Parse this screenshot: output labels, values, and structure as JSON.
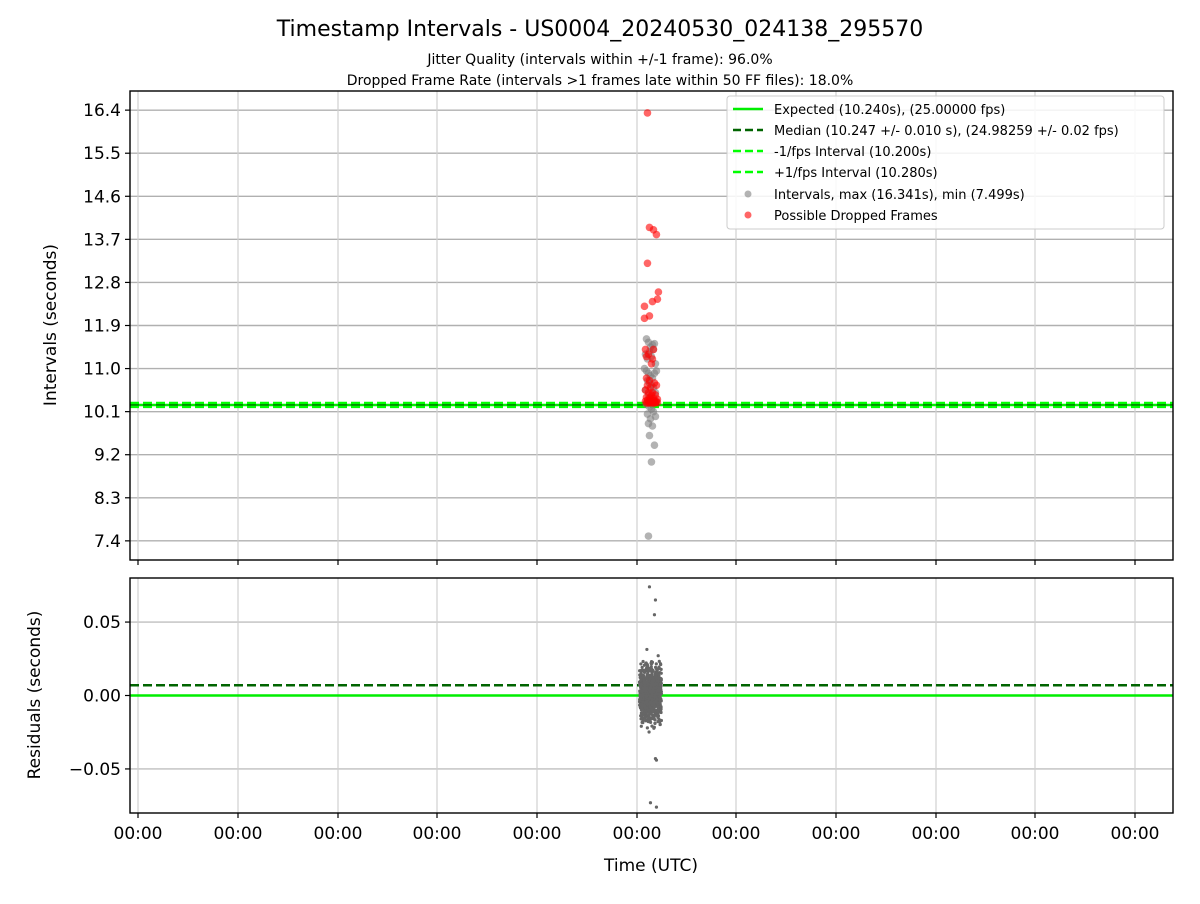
{
  "title": "Timestamp Intervals - US0004_20240530_024138_295570",
  "subtitle_1": "Jitter Quality (intervals within +/-1 frame): 96.0%",
  "subtitle_2": "Dropped Frame Rate (intervals >1 frames late within 50 FF files): 18.0%",
  "colors": {
    "expected": "#00ee00",
    "median": "#006400",
    "fps_bounds": "#00ff00",
    "intervals": "#808080",
    "dropped": "#ff0000",
    "residuals": "#666666",
    "grid": "#b0b0b0"
  },
  "chart_data": [
    {
      "type": "scatter",
      "ylabel": "Intervals (seconds)",
      "ylim": [
        7.0,
        16.8
      ],
      "yticks": [
        "7.4",
        "8.3",
        "9.2",
        "10.1",
        "11.0",
        "11.9",
        "12.8",
        "13.7",
        "14.6",
        "15.5",
        "16.4"
      ],
      "grid": true,
      "legend_placement": "top-right",
      "xticklabels": [
        "00:00",
        "00:00",
        "00:00",
        "00:00",
        "00:00",
        "00:00",
        "00:00",
        "00:00",
        "00:00",
        "00:00",
        "00:00"
      ],
      "hlines": [
        {
          "name": "Expected (10.240s), (25.00000 fps)",
          "y": 10.24,
          "style": "solid",
          "color": "#00ee00"
        },
        {
          "name": "Median (10.247 +/- 0.010 s), (24.98259 +/- 0.02 fps)",
          "y": 10.247,
          "style": "dashed",
          "color": "#006400"
        },
        {
          "name": "-1/fps Interval (10.200s)",
          "y": 10.2,
          "style": "dashed",
          "color": "#00ff00"
        },
        {
          "name": "+1/fps Interval (10.280s)",
          "y": 10.28,
          "style": "dashed",
          "color": "#00ff00"
        }
      ],
      "series": [
        {
          "name": "Intervals, max (16.341s), min (7.499s)",
          "color": "#808080",
          "x": [
            5.1,
            5.12,
            5.14,
            5.16,
            5.18,
            5.09,
            5.11,
            5.13,
            5.15,
            5.17,
            5.19,
            5.08,
            5.1,
            5.12,
            5.14,
            5.16,
            5.18,
            5.2,
            5.11,
            5.13,
            5.15,
            5.17,
            5.09,
            5.19,
            5.12,
            5.14,
            5.16,
            5.18,
            5.1,
            5.13,
            5.15,
            5.17,
            5.11,
            5.19,
            5.14,
            5.12,
            5.16,
            5.13,
            5.18,
            5.15
          ],
          "y": [
            11.62,
            11.55,
            11.45,
            11.5,
            11.52,
            11.3,
            11.2,
            11.35,
            11.25,
            11.4,
            11.1,
            11.0,
            10.95,
            10.9,
            10.85,
            10.8,
            10.9,
            10.95,
            10.75,
            10.7,
            10.65,
            10.6,
            10.55,
            10.5,
            10.45,
            10.4,
            10.35,
            10.3,
            10.25,
            10.2,
            10.15,
            10.1,
            10.05,
            10.0,
            9.95,
            9.85,
            9.8,
            9.6,
            9.4,
            9.05
          ],
          "extra_points": [
            {
              "x": 5.12,
              "y": 7.499
            }
          ]
        },
        {
          "name": "Possible Dropped Frames",
          "color": "#ff0000",
          "x": [
            5.11,
            5.13,
            5.17,
            5.2,
            5.11,
            5.22,
            5.21,
            5.08,
            5.16,
            5.08,
            5.13,
            5.09,
            5.17,
            5.12,
            5.1,
            5.16,
            5.15,
            5.1,
            5.13,
            5.18,
            5.11,
            5.14,
            5.2,
            5.09,
            5.16,
            5.12,
            5.19,
            5.15,
            5.1,
            5.13,
            5.17,
            5.21,
            5.14,
            5.11,
            5.18,
            5.09,
            5.2,
            5.15,
            5.12,
            5.19,
            5.1,
            5.16,
            5.13,
            5.18,
            5.21,
            5.14
          ],
          "y": [
            16.341,
            13.95,
            13.9,
            13.8,
            13.2,
            12.6,
            12.45,
            12.3,
            12.4,
            12.05,
            12.1,
            11.4,
            11.4,
            11.3,
            11.25,
            11.2,
            11.1,
            10.8,
            10.75,
            10.7,
            10.65,
            10.6,
            10.65,
            10.55,
            10.5,
            10.5,
            10.45,
            10.45,
            10.4,
            10.38,
            10.38,
            10.36,
            10.35,
            10.34,
            10.33,
            10.32,
            10.31,
            10.3,
            10.29,
            10.29,
            10.28,
            10.28,
            10.28,
            10.28,
            10.29,
            10.3
          ]
        }
      ]
    },
    {
      "type": "scatter",
      "ylabel": "Residuals (seconds)",
      "xlabel": "Time (UTC)",
      "ylim": [
        -0.08,
        0.08
      ],
      "yticks": [
        "−0.05",
        "0.00",
        "0.05"
      ],
      "grid": true,
      "xticklabels": [
        "00:00",
        "00:00",
        "00:00",
        "00:00",
        "00:00",
        "00:00",
        "00:00",
        "00:00",
        "00:00",
        "00:00",
        "00:00"
      ],
      "hlines": [
        {
          "name": "Expected",
          "y": 0.0,
          "style": "solid",
          "color": "#00ee00"
        },
        {
          "name": "Median",
          "y": 0.007,
          "style": "dashed",
          "color": "#006400"
        }
      ],
      "series": [
        {
          "name": "Residuals",
          "color": "#666666",
          "x_range": [
            5.03,
            5.25
          ],
          "y_center": 0.002,
          "y_spread": 0.025,
          "outliers": [
            [
              5.13,
              0.074
            ],
            [
              5.19,
              0.065
            ],
            [
              5.18,
              0.055
            ],
            [
              5.14,
              -0.073
            ],
            [
              5.2,
              -0.076
            ],
            [
              5.2,
              -0.044
            ],
            [
              5.19,
              -0.043
            ]
          ]
        }
      ]
    }
  ]
}
